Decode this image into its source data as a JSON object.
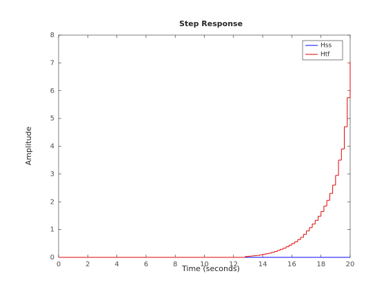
{
  "chart_data": {
    "type": "step",
    "title": "Step Response",
    "x_label": "Time (seconds)",
    "y_label": "Amplitude",
    "xlim": [
      0,
      20
    ],
    "ylim": [
      0,
      8
    ],
    "xticks": [
      0,
      2,
      4,
      6,
      8,
      10,
      12,
      14,
      16,
      18,
      20
    ],
    "yticks": [
      0,
      1,
      2,
      3,
      4,
      5,
      6,
      7,
      8
    ],
    "legend": "upper-right",
    "series": [
      {
        "name": "Hss",
        "color": "#0000ff",
        "x": [
          0,
          20
        ],
        "values": [
          0,
          0
        ]
      },
      {
        "name": "Htf",
        "color": "#e00000",
        "x": [
          0,
          12.8,
          13,
          13.2,
          13.4,
          13.6,
          13.8,
          14,
          14.2,
          14.4,
          14.6,
          14.8,
          15,
          15.2,
          15.4,
          15.6,
          15.8,
          16,
          16.2,
          16.4,
          16.6,
          16.8,
          17,
          17.2,
          17.4,
          17.6,
          17.8,
          18,
          18.2,
          18.4,
          18.6,
          18.8,
          19,
          19.2,
          19.4,
          19.6,
          19.8,
          20
        ],
        "values": [
          0,
          0.03,
          0.04,
          0.05,
          0.06,
          0.07,
          0.09,
          0.11,
          0.13,
          0.15,
          0.18,
          0.21,
          0.25,
          0.29,
          0.33,
          0.38,
          0.44,
          0.5,
          0.56,
          0.64,
          0.72,
          0.83,
          0.95,
          1.07,
          1.2,
          1.33,
          1.48,
          1.65,
          1.85,
          2.05,
          2.3,
          2.6,
          2.95,
          3.5,
          3.9,
          4.7,
          5.75,
          7.05
        ]
      }
    ]
  }
}
